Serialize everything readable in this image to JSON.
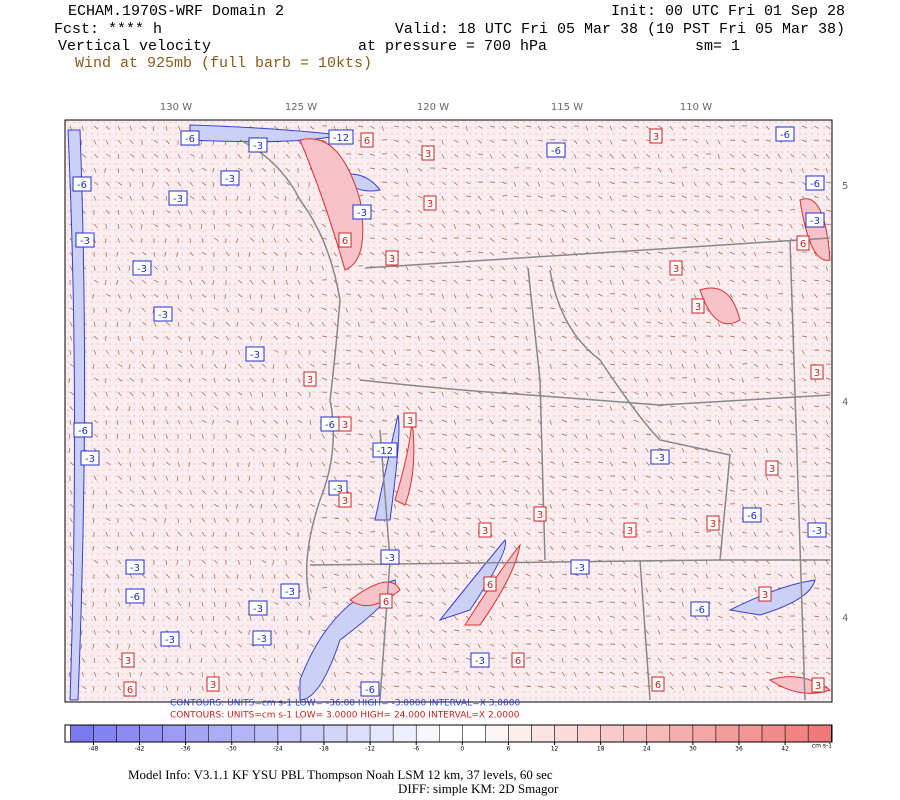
{
  "header": {
    "title": "ECHAM.1970S-WRF Domain 2",
    "init": "Init: 00 UTC Fri 01 Sep 28",
    "fcst": "Fcst: **** h",
    "valid": "Valid: 18 UTC Fri 05 Mar 38 (10 PST Fri 05 Mar 38)",
    "field": "Vertical velocity",
    "level": "at pressure =  700 hPa",
    "smooth": "sm= 1",
    "wind": "Wind at 925mb (full barb = 10kts)"
  },
  "map": {
    "lon_labels": [
      "130 W",
      "125 W",
      "120 W",
      "115 W",
      "110 W"
    ],
    "lat_labels": [
      "5",
      "4",
      "4"
    ],
    "contour_labels": [
      "-6",
      "-3",
      "-12",
      "6",
      "-6",
      "3",
      "-6",
      "-6",
      "-3",
      "-3",
      "3",
      "-3",
      "3",
      "-6",
      "-3",
      "-3",
      "6",
      "6",
      "-3",
      "3",
      "3",
      "-3",
      "3",
      "-3",
      "3",
      "3",
      "-6",
      "3",
      "-6",
      "-3",
      "-12",
      "3",
      "-3",
      "3",
      "-3",
      "3",
      "-3",
      "3",
      "3",
      "3",
      "3",
      "-6",
      "-3",
      "-3",
      "-3",
      "-6",
      "-3",
      "6",
      "6",
      "-3",
      "3",
      "-6",
      "-3",
      "-3",
      "3",
      "6",
      "-3",
      "6",
      "3",
      "-6",
      "6",
      "3"
    ]
  },
  "legend": {
    "neg": "CONTOURS:  UNITS=cm s-1  LOW= -36.00  HIGH= -3.0000  INTERVAL=X 3.0000",
    "pos": "CONTOURS:  UNITS=cm s-1  LOW=  3.0000  HIGH=  24.000  INTERVAL=X  2.0000"
  },
  "colorbar": {
    "ticks": [
      -48,
      -42,
      -36,
      -30,
      -24,
      -18,
      -12,
      -6,
      0,
      6,
      12,
      18,
      24,
      30,
      36,
      42
    ],
    "unit": "cm s-1",
    "colors": [
      "#7a7af0",
      "#ffffff",
      "#f07a7a"
    ]
  },
  "footer": {
    "model": "Model Info: V3.1.1    KF     YSU PBL   Thompson    Noah LSM   12 km,    37 levels,    60 sec",
    "diff": "DIFF: simple KM: 2D Smagor"
  }
}
